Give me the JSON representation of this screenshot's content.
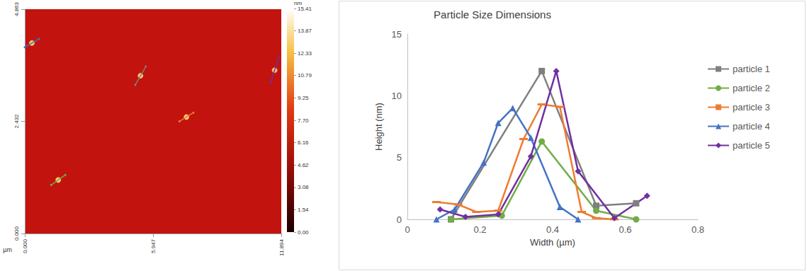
{
  "chart_data": [
    {
      "type": "afm_image",
      "xlabel": "µm",
      "xlim": [
        0,
        11.894
      ],
      "xticks": [
        {
          "value": 0,
          "label": "0.000"
        },
        {
          "value": 5.947,
          "label": "5.947"
        },
        {
          "value": 11.894,
          "label": "11.894"
        }
      ],
      "ylim": [
        0,
        4.863
      ],
      "yticks": [
        {
          "value": 0,
          "label": "0.000"
        },
        {
          "value": 2.432,
          "label": "2.432"
        },
        {
          "value": 4.863,
          "label": "4.863"
        }
      ],
      "colorbar": {
        "label": "nm",
        "range": [
          0,
          15.41
        ],
        "ticks": [
          {
            "value": 0,
            "label": "0.00"
          },
          1.54,
          3.08,
          4.62,
          6.16,
          {
            "value": 7.7,
            "label": "7.70"
          },
          9.25,
          10.79,
          12.33,
          13.87,
          15.41
        ]
      },
      "profiles": [
        {
          "color": "#4472c4",
          "x": [
            0.0,
            0.66
          ],
          "y": [
            4.04,
            4.22
          ]
        },
        {
          "color": "#7f7f7f",
          "x": [
            5.12,
            5.61
          ],
          "y": [
            3.22,
            3.62
          ]
        },
        {
          "color": "#ed7d31",
          "x": [
            7.17,
            7.82
          ],
          "y": [
            2.43,
            2.62
          ]
        },
        {
          "color": "#70ad47",
          "x": [
            1.22,
            1.88
          ],
          "y": [
            1.05,
            1.27
          ]
        },
        {
          "color": "#7030a0",
          "x": [
            11.39,
            11.78
          ],
          "y": [
            3.26,
            3.82
          ]
        }
      ]
    },
    {
      "type": "line",
      "title": "Particle Size Dimensions",
      "xlabel": "Width (µm)",
      "ylabel": "Height (nm)",
      "xlim": [
        0,
        0.8
      ],
      "xticks": [
        0,
        0.2,
        0.4,
        0.6,
        0.8
      ],
      "ylim": [
        0,
        15
      ],
      "yticks": [
        0,
        5,
        10,
        15
      ],
      "grid": false,
      "legend": "right",
      "series": [
        {
          "name": "particle 1",
          "color": "#7f7f7f",
          "marker": "square",
          "x": [
            0.12,
            0.37,
            0.52,
            0.63
          ],
          "values": [
            0,
            12,
            1.1,
            1.3
          ]
        },
        {
          "name": "particle 2",
          "color": "#70ad47",
          "marker": "circle",
          "x": [
            0.12,
            0.26,
            0.37,
            0.52,
            0.63
          ],
          "values": [
            0,
            0.3,
            6.3,
            0.7,
            0
          ]
        },
        {
          "name": "particle 3",
          "color": "#ed7d31",
          "marker": "dash",
          "x": [
            0.08,
            0.14,
            0.19,
            0.25,
            0.32,
            0.37,
            0.42,
            0.48,
            0.52,
            0.57
          ],
          "values": [
            1.4,
            1.2,
            0.6,
            0.7,
            6.5,
            9.3,
            9.1,
            0.6,
            0.1,
            0
          ]
        },
        {
          "name": "particle 4",
          "color": "#4472c4",
          "marker": "triangle",
          "x": [
            0.08,
            0.13,
            0.21,
            0.25,
            0.29,
            0.34,
            0.42,
            0.47
          ],
          "values": [
            0,
            0.8,
            4.6,
            7.8,
            9.0,
            6.6,
            1.0,
            0
          ]
        },
        {
          "name": "particle 5",
          "color": "#7030a0",
          "marker": "diamond",
          "x": [
            0.09,
            0.16,
            0.25,
            0.34,
            0.41,
            0.47,
            0.57,
            0.66
          ],
          "values": [
            0.8,
            0.2,
            0.4,
            5.1,
            12,
            3.9,
            0.1,
            1.9
          ]
        }
      ]
    }
  ]
}
